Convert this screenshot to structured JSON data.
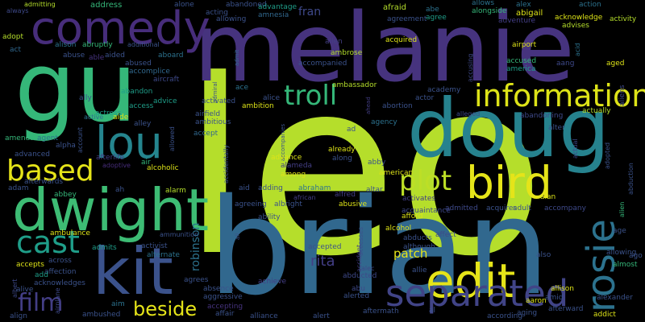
{
  "words": [
    {
      "text": "leo",
      "color": "#b5de2b"
    },
    {
      "text": "brian",
      "color": "#31688e"
    },
    {
      "text": "melanie",
      "color": "#46337e"
    },
    {
      "text": "doug",
      "color": "#26828e"
    },
    {
      "text": "gu",
      "color": "#35b779"
    },
    {
      "text": "dwight",
      "color": "#3dbc74"
    },
    {
      "text": "kit",
      "color": "#3b528b"
    },
    {
      "text": "comedy",
      "color": "#472d7b"
    },
    {
      "text": "lou",
      "color": "#25858e"
    },
    {
      "text": "edit",
      "color": "#e5e419"
    },
    {
      "text": "bird",
      "color": "#e5e419"
    },
    {
      "text": "rosie",
      "color": "#2c728e"
    },
    {
      "text": "information",
      "color": "#dde318"
    },
    {
      "text": "separated",
      "color": "#414487"
    },
    {
      "text": "based",
      "color": "#e5e419"
    },
    {
      "text": "troll",
      "color": "#35b779"
    },
    {
      "text": "plot",
      "color": "#bddf26"
    },
    {
      "text": "cast",
      "color": "#1f9e89"
    },
    {
      "text": "film",
      "color": "#433e85"
    },
    {
      "text": "beside",
      "color": "#e5e419"
    },
    {
      "text": "patch",
      "color": "#e5e419"
    },
    {
      "text": "rita",
      "color": "#433e85"
    },
    {
      "text": "robinson",
      "color": "#2c728e"
    },
    {
      "text": "fran",
      "color": "#3e4989"
    },
    {
      "text": "address",
      "color": "#35b779"
    },
    {
      "text": "alone",
      "color": "#3b528b"
    },
    {
      "text": "abandoned",
      "color": "#3b528b"
    },
    {
      "text": "advantage",
      "color": "#1f9e89"
    },
    {
      "text": "afraid",
      "color": "#b5de2b"
    },
    {
      "text": "abe",
      "color": "#2c728e"
    },
    {
      "text": "allows",
      "color": "#2c728e"
    },
    {
      "text": "alex",
      "color": "#2c728e"
    },
    {
      "text": "action",
      "color": "#2c728e"
    },
    {
      "text": "always",
      "color": "#3e4989"
    },
    {
      "text": "admitting",
      "color": "#b5de2b"
    },
    {
      "text": "acting",
      "color": "#3b528b"
    },
    {
      "text": "allowing",
      "color": "#3b528b"
    },
    {
      "text": "amnesia",
      "color": "#31688e"
    },
    {
      "text": "agreement",
      "color": "#3b528b"
    },
    {
      "text": "agree",
      "color": "#1f9e89"
    },
    {
      "text": "alongside",
      "color": "#35b779"
    },
    {
      "text": "abigail",
      "color": "#dde318"
    },
    {
      "text": "acknowledge",
      "color": "#dde318"
    },
    {
      "text": "activity",
      "color": "#b5de2b"
    },
    {
      "text": "adventure",
      "color": "#433e85"
    },
    {
      "text": "advises",
      "color": "#b5de2b"
    },
    {
      "text": "adopt",
      "color": "#b5de2b"
    },
    {
      "text": "act",
      "color": "#31688e"
    },
    {
      "text": "alison",
      "color": "#2c728e"
    },
    {
      "text": "additional",
      "color": "#3b528b"
    },
    {
      "text": "admit",
      "color": "#31688e"
    },
    {
      "text": "allen",
      "color": "#433e85"
    },
    {
      "text": "ambrose",
      "color": "#b5de2b"
    },
    {
      "text": "acquired",
      "color": "#dde318"
    },
    {
      "text": "airport",
      "color": "#dde318"
    },
    {
      "text": "abruptly",
      "color": "#35b779"
    },
    {
      "text": "abuse",
      "color": "#3b528b"
    },
    {
      "text": "able",
      "color": "#46337e"
    },
    {
      "text": "aided",
      "color": "#3b528b"
    },
    {
      "text": "abused",
      "color": "#3b528b"
    },
    {
      "text": "aboard",
      "color": "#2c728e"
    },
    {
      "text": "accompanied",
      "color": "#3b528b"
    },
    {
      "text": "accusing",
      "color": "#3e4989"
    },
    {
      "text": "accused",
      "color": "#35b779"
    },
    {
      "text": "america",
      "color": "#1f9e89"
    },
    {
      "text": "acid",
      "color": "#2c728e"
    },
    {
      "text": "aang",
      "color": "#3e4989"
    },
    {
      "text": "aged",
      "color": "#dde318"
    },
    {
      "text": "accomplice",
      "color": "#31688e"
    },
    {
      "text": "aircraft",
      "color": "#3e4989"
    },
    {
      "text": "admiral",
      "color": "#3b528b"
    },
    {
      "text": "ace",
      "color": "#2c728e"
    },
    {
      "text": "ambassador",
      "color": "#b5de2b"
    },
    {
      "text": "academy",
      "color": "#3b528b"
    },
    {
      "text": "actor",
      "color": "#3b528b"
    },
    {
      "text": "abandon",
      "color": "#1f9e89"
    },
    {
      "text": "ally",
      "color": "#3b528b"
    },
    {
      "text": "advice",
      "color": "#1f9e89"
    },
    {
      "text": "access",
      "color": "#1f9e89"
    },
    {
      "text": "activated",
      "color": "#3b528b"
    },
    {
      "text": "ambition",
      "color": "#dde318"
    },
    {
      "text": "alice",
      "color": "#3b528b"
    },
    {
      "text": "ahead",
      "color": "#433e85"
    },
    {
      "text": "abortion",
      "color": "#3b528b"
    },
    {
      "text": "actress",
      "color": "#1f9e89"
    },
    {
      "text": "alleged",
      "color": "#3e4989"
    },
    {
      "text": "abandoning",
      "color": "#3e4989"
    },
    {
      "text": "aliens",
      "color": "#3e4989"
    },
    {
      "text": "active",
      "color": "#2c728e"
    },
    {
      "text": "aide",
      "color": "#dde318"
    },
    {
      "text": "airfield",
      "color": "#3b528b"
    },
    {
      "text": "ambitious",
      "color": "#3b528b"
    },
    {
      "text": "actually",
      "color": "#b5de2b"
    },
    {
      "text": "agency",
      "color": "#2c728e"
    },
    {
      "text": "account",
      "color": "#3b528b"
    },
    {
      "text": "alley",
      "color": "#3b528b"
    },
    {
      "text": "allowed",
      "color": "#3b528b"
    },
    {
      "text": "accept",
      "color": "#31688e"
    },
    {
      "text": "accidentally",
      "color": "#3b528b"
    },
    {
      "text": "accompanies",
      "color": "#3b528b"
    },
    {
      "text": "ad",
      "color": "#3b528b"
    },
    {
      "text": "alter",
      "color": "#3b528b"
    },
    {
      "text": "actual",
      "color": "#3e4989"
    },
    {
      "text": "adopted",
      "color": "#3b528b"
    },
    {
      "text": "amends",
      "color": "#35b779"
    },
    {
      "text": "agent",
      "color": "#2c728e"
    },
    {
      "text": "alpha",
      "color": "#3b528b"
    },
    {
      "text": "advance",
      "color": "#dde318"
    },
    {
      "text": "already",
      "color": "#dde318"
    },
    {
      "text": "abduction",
      "color": "#3b528b"
    },
    {
      "text": "advanced",
      "color": "#3b528b"
    },
    {
      "text": "air",
      "color": "#35b779"
    },
    {
      "text": "alcoholic",
      "color": "#dde318"
    },
    {
      "text": "adoptive",
      "color": "#472d7b"
    },
    {
      "text": "alameda",
      "color": "#433e85"
    },
    {
      "text": "along",
      "color": "#3b528b"
    },
    {
      "text": "afterlife",
      "color": "#433e85"
    },
    {
      "text": "among",
      "color": "#dde318"
    },
    {
      "text": "abby",
      "color": "#3b528b"
    },
    {
      "text": "adam",
      "color": "#3b528b"
    },
    {
      "text": "afterwards",
      "color": "#3b528b"
    },
    {
      "text": "altar",
      "color": "#3b528b"
    },
    {
      "text": "american",
      "color": "#dde318"
    },
    {
      "text": "alan",
      "color": "#dde318"
    },
    {
      "text": "abbey",
      "color": "#35b779"
    },
    {
      "text": "ah",
      "color": "#3b528b"
    },
    {
      "text": "alarm",
      "color": "#b5de2b"
    },
    {
      "text": "aid",
      "color": "#3b528b"
    },
    {
      "text": "adding",
      "color": "#3b528b"
    },
    {
      "text": "abraham",
      "color": "#2c728e"
    },
    {
      "text": "alfred",
      "color": "#433e85"
    },
    {
      "text": "alien",
      "color": "#35b779"
    },
    {
      "text": "agreeing",
      "color": "#3b528b"
    },
    {
      "text": "african",
      "color": "#433e85"
    },
    {
      "text": "albright",
      "color": "#3b528b"
    },
    {
      "text": "abusive",
      "color": "#dde318"
    },
    {
      "text": "activates",
      "color": "#433e85"
    },
    {
      "text": "ability",
      "color": "#3b528b"
    },
    {
      "text": "acquaintance",
      "color": "#3e4989"
    },
    {
      "text": "admitted",
      "color": "#3e4989"
    },
    {
      "text": "acquires",
      "color": "#3b528b"
    },
    {
      "text": "adult",
      "color": "#3b528b"
    },
    {
      "text": "accompany",
      "color": "#3e4989"
    },
    {
      "text": "afford",
      "color": "#dde318"
    },
    {
      "text": "age",
      "color": "#3b528b"
    },
    {
      "text": "ambulance",
      "color": "#dde318"
    },
    {
      "text": "ammunition",
      "color": "#3b528b"
    },
    {
      "text": "admits",
      "color": "#1f9e89"
    },
    {
      "text": "activist",
      "color": "#3b528b"
    },
    {
      "text": "alternate",
      "color": "#2c728e"
    },
    {
      "text": "all",
      "color": "#3b528b"
    },
    {
      "text": "alcohol",
      "color": "#dde318"
    },
    {
      "text": "abducts",
      "color": "#3b528b"
    },
    {
      "text": "affect",
      "color": "#3e4989"
    },
    {
      "text": "accepted",
      "color": "#3b528b"
    },
    {
      "text": "although",
      "color": "#3b528b"
    },
    {
      "text": "accesses",
      "color": "#3b528b"
    },
    {
      "text": "accident",
      "color": "#433e85"
    },
    {
      "text": "allie",
      "color": "#3b528b"
    },
    {
      "text": "alec",
      "color": "#3e4989"
    },
    {
      "text": "abducted",
      "color": "#3e4989"
    },
    {
      "text": "accepts",
      "color": "#dde318"
    },
    {
      "text": "across",
      "color": "#3b528b"
    },
    {
      "text": "affection",
      "color": "#3b528b"
    },
    {
      "text": "add",
      "color": "#1f9e89"
    },
    {
      "text": "also",
      "color": "#3b528b"
    },
    {
      "text": "almost",
      "color": "#35b779"
    },
    {
      "text": "allowing",
      "color": "#3b528b"
    },
    {
      "text": "ago",
      "color": "#3b528b"
    },
    {
      "text": "albert",
      "color": "#3e4989"
    },
    {
      "text": "alive",
      "color": "#3b528b"
    },
    {
      "text": "acknowledges",
      "color": "#3b528b"
    },
    {
      "text": "agrees",
      "color": "#3b528b"
    },
    {
      "text": "absence",
      "color": "#3b528b"
    },
    {
      "text": "aggressive",
      "color": "#3b528b"
    },
    {
      "text": "achieve",
      "color": "#433e85"
    },
    {
      "text": "abu",
      "color": "#3e4989"
    },
    {
      "text": "alerted",
      "color": "#3b528b"
    },
    {
      "text": "allison",
      "color": "#dde318"
    },
    {
      "text": "aaron",
      "color": "#dde318"
    },
    {
      "text": "amid",
      "color": "#3b528b"
    },
    {
      "text": "alexander",
      "color": "#3b528b"
    },
    {
      "text": "airplane",
      "color": "#3e4989"
    },
    {
      "text": "accepting",
      "color": "#46337e"
    },
    {
      "text": "affair",
      "color": "#3b528b"
    },
    {
      "text": "aftermath",
      "color": "#3b528b"
    },
    {
      "text": "afterward",
      "color": "#3b528b"
    },
    {
      "text": "ambushed",
      "color": "#3b528b"
    },
    {
      "text": "aim",
      "color": "#2c728e"
    },
    {
      "text": "al",
      "color": "#3b528b"
    },
    {
      "text": "align",
      "color": "#3b528b"
    },
    {
      "text": "alliance",
      "color": "#3b528b"
    },
    {
      "text": "alert",
      "color": "#3b528b"
    },
    {
      "text": "according",
      "color": "#3b528b"
    },
    {
      "text": "aging",
      "color": "#3b528b"
    },
    {
      "text": "addict",
      "color": "#dde318"
    }
  ]
}
